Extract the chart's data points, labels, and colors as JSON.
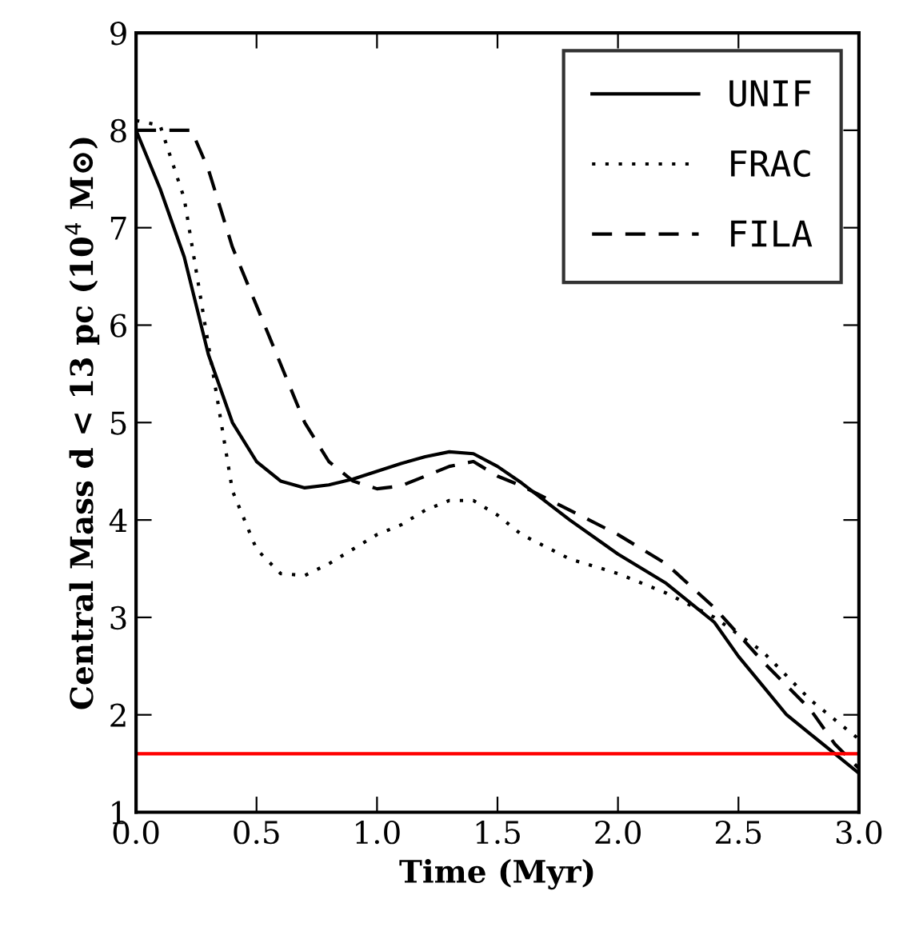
{
  "chart_data": {
    "type": "line",
    "xlabel": "Time (Myr)",
    "ylabel": "Central Mass d < 13 pc (10$^{4}$ M⊙)",
    "xlim": [
      0.0,
      3.0
    ],
    "xticks": [
      {
        "value": 0,
        "label": "0.0"
      },
      {
        "value": 0.5,
        "label": "0.5"
      },
      {
        "value": 1,
        "label": "1.0"
      },
      {
        "value": 1.5,
        "label": "1.5"
      },
      {
        "value": 2,
        "label": "2.0"
      },
      {
        "value": 2.5,
        "label": "2.5"
      },
      {
        "value": 3,
        "label": "3.0"
      }
    ],
    "ylim": [
      1,
      9
    ],
    "yticks": [
      1,
      2,
      3,
      4,
      5,
      6,
      7,
      8,
      9
    ],
    "grid": false,
    "legend": "top right",
    "series": [
      {
        "name": "UNIF",
        "color": "#000000",
        "line_style": "solid",
        "x": [
          0,
          0.1,
          0.2,
          0.3,
          0.4,
          0.5,
          0.6,
          0.7,
          0.8,
          0.9,
          1.0,
          1.1,
          1.2,
          1.3,
          1.4,
          1.5,
          1.6,
          1.8,
          2.0,
          2.2,
          2.4,
          2.5,
          2.6,
          2.7,
          2.8,
          2.9,
          3.0
        ],
        "values": [
          8.0,
          7.4,
          6.7,
          5.7,
          5.0,
          4.6,
          4.4,
          4.33,
          4.36,
          4.42,
          4.5,
          4.58,
          4.65,
          4.7,
          4.68,
          4.55,
          4.38,
          4.0,
          3.65,
          3.35,
          2.95,
          2.6,
          2.3,
          2.0,
          1.8,
          1.6,
          1.4
        ]
      },
      {
        "name": "FRAC",
        "color": "#000000",
        "line_style": "dotted",
        "x": [
          0,
          0.1,
          0.2,
          0.3,
          0.4,
          0.5,
          0.6,
          0.7,
          0.8,
          0.9,
          1.0,
          1.1,
          1.2,
          1.3,
          1.4,
          1.5,
          1.6,
          1.8,
          2.0,
          2.2,
          2.4,
          2.6,
          2.8,
          3.0
        ],
        "values": [
          8.1,
          8.05,
          7.3,
          5.8,
          4.3,
          3.7,
          3.45,
          3.43,
          3.55,
          3.7,
          3.85,
          3.95,
          4.1,
          4.2,
          4.2,
          4.05,
          3.85,
          3.6,
          3.45,
          3.25,
          3.0,
          2.65,
          2.15,
          1.75
        ]
      },
      {
        "name": "FILA",
        "color": "#000000",
        "line_style": "dashed",
        "x": [
          0,
          0.23,
          0.3,
          0.4,
          0.5,
          0.6,
          0.7,
          0.8,
          0.9,
          1.0,
          1.1,
          1.2,
          1.3,
          1.4,
          1.5,
          1.6,
          1.8,
          2.0,
          2.2,
          2.4,
          2.6,
          2.8,
          2.9,
          3.0
        ],
        "values": [
          8.0,
          8.0,
          7.6,
          6.8,
          6.2,
          5.6,
          5.0,
          4.6,
          4.4,
          4.32,
          4.35,
          4.45,
          4.55,
          4.6,
          4.45,
          4.35,
          4.1,
          3.85,
          3.55,
          3.1,
          2.55,
          2.05,
          1.7,
          1.45
        ]
      }
    ],
    "ref_lines": [
      {
        "axis": "y",
        "value": 1.6,
        "color": "#ff0000",
        "line_style": "solid"
      }
    ]
  }
}
